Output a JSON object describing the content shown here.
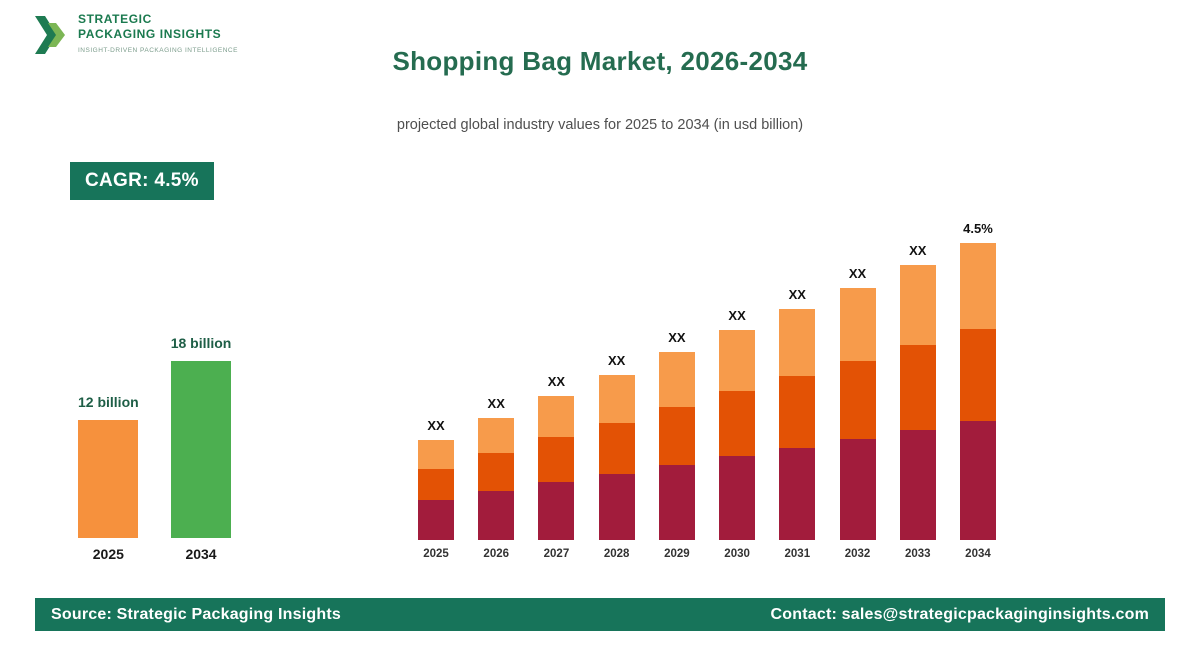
{
  "logo": {
    "line1": "STRATEGIC",
    "line2": "PACKAGING INSIGHTS",
    "tagline": "INSIGHT-DRIVEN PACKAGING INTELLIGENCE"
  },
  "header": {
    "title": "Shopping Bag Market, 2026-2034",
    "subtitle": "projected global industry values for 2025 to 2034 (in usd billion)"
  },
  "cagr_badge": {
    "label": "CAGR: 4.5%"
  },
  "footer": {
    "source": "Source: Strategic Packaging Insights",
    "contact": "Contact: sales@strategicpackaginginsights.com"
  },
  "colors": {
    "brand_green": "#17745A",
    "title_green": "#256C50",
    "summary_orange": "#F6913D",
    "summary_green": "#4CAF50",
    "stack_bottom_maroon": "#A21C3C",
    "stack_middle_orange_red": "#E35205",
    "stack_top_light_orange": "#F79B4B"
  },
  "chart_data": [
    {
      "type": "bar",
      "name": "market-size-summary",
      "unit": "usd billion",
      "categories": [
        "2025",
        "2034"
      ],
      "values": [
        12,
        18
      ],
      "value_labels": [
        "12 billion",
        "18 billion"
      ],
      "bar_colors": [
        "#F6913D",
        "#4CAF50"
      ],
      "ylim": [
        0,
        18
      ],
      "grid": false,
      "legend": false
    },
    {
      "type": "bar",
      "name": "projection-stacked",
      "stacked": true,
      "unit": "relative height (values shown as XX placeholders)",
      "categories": [
        "2025",
        "2026",
        "2027",
        "2028",
        "2029",
        "2030",
        "2031",
        "2032",
        "2033",
        "2034"
      ],
      "bar_labels": [
        "XX",
        "XX",
        "XX",
        "XX",
        "XX",
        "XX",
        "XX",
        "XX",
        "XX",
        "4.5%"
      ],
      "series": [
        {
          "name": "segment-bottom",
          "color": "#A21C3C",
          "values": [
            40,
            49,
            58,
            66,
            75,
            84,
            92,
            101,
            110,
            119
          ]
        },
        {
          "name": "segment-middle",
          "color": "#E35205",
          "values": [
            31,
            38,
            45,
            51,
            58,
            65,
            72,
            78,
            85,
            92
          ]
        },
        {
          "name": "segment-top",
          "color": "#F79B4B",
          "values": [
            29,
            35,
            41,
            48,
            55,
            61,
            67,
            73,
            80,
            86
          ]
        }
      ],
      "totals": [
        100,
        122,
        144,
        165,
        188,
        210,
        231,
        252,
        275,
        297
      ],
      "grid": false,
      "legend": false
    }
  ]
}
